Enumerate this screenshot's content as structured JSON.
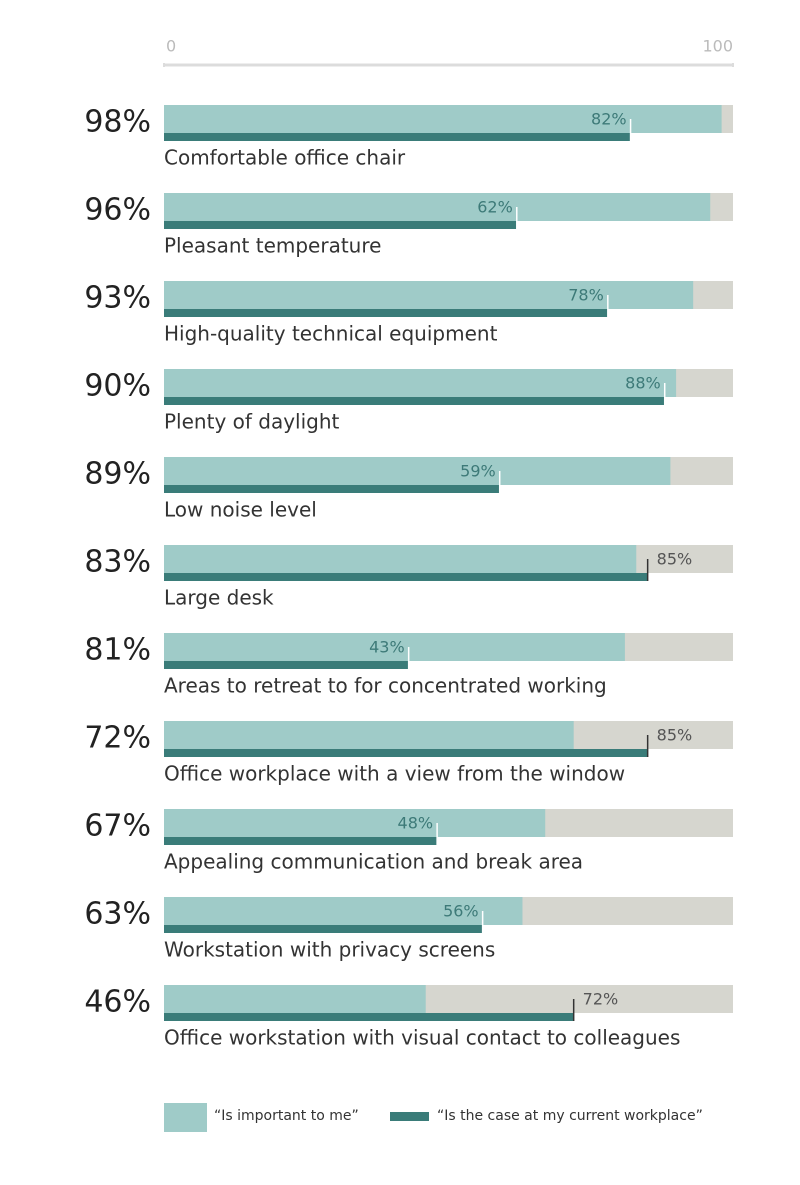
{
  "chart_data": {
    "type": "bar",
    "orientation": "horizontal",
    "categories": [
      "Comfortable office chair",
      "Pleasant temperature",
      "High-quality technical equipment",
      "Plenty of daylight",
      "Low noise level",
      "Large desk",
      "Areas to retreat to for concentrated working",
      "Office workplace with a view from the window",
      "Appealing communication and break area",
      "Workstation with privacy screens",
      "Office workstation with visual contact to colleagues"
    ],
    "series": [
      {
        "name": "“Is important to me”",
        "color": "#9fcbc8",
        "values": [
          98,
          96,
          93,
          90,
          89,
          83,
          81,
          72,
          67,
          63,
          46
        ],
        "value_labels": [
          "98%",
          "96%",
          "93%",
          "90%",
          "89%",
          "83%",
          "81%",
          "72%",
          "67%",
          "63%",
          "46%"
        ]
      },
      {
        "name": "“Is the case at my current workplace”",
        "color": "#3a7c79",
        "values": [
          82,
          62,
          78,
          88,
          59,
          85,
          43,
          85,
          48,
          56,
          72
        ],
        "value_labels": [
          "82%",
          "62%",
          "78%",
          "88%",
          "59%",
          "85%",
          "43%",
          "85%",
          "48%",
          "56%",
          "72%"
        ]
      }
    ],
    "xlim": [
      0,
      100
    ],
    "xticks": [
      0,
      100
    ]
  }
}
